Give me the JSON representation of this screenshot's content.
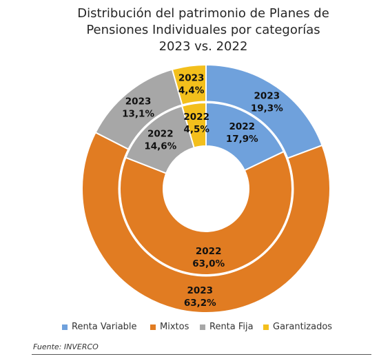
{
  "chart_data": {
    "type": "pie",
    "title_lines": [
      "Distribución del patrimonio de Planes de",
      "Pensiones Individuales por categorías",
      "2023 vs. 2022"
    ],
    "categories": [
      "Renta Variable",
      "Mixtos",
      "Renta Fija",
      "Garantizados"
    ],
    "colors": [
      "#6FA1DC",
      "#E17C22",
      "#A7A7A7",
      "#F3BF1C"
    ],
    "series": [
      {
        "name": "2023",
        "ring": "outer",
        "values": [
          19.3,
          63.2,
          13.1,
          4.4
        ],
        "labels": [
          "19,3%",
          "63,2%",
          "13,1%",
          "4,4%"
        ]
      },
      {
        "name": "2022",
        "ring": "inner",
        "values": [
          17.9,
          63.0,
          14.6,
          4.5
        ],
        "labels": [
          "17,9%",
          "63,0%",
          "14,6%",
          "4,5%"
        ]
      }
    ],
    "legend_position": "bottom",
    "source": "Fuente: INVERCO"
  }
}
